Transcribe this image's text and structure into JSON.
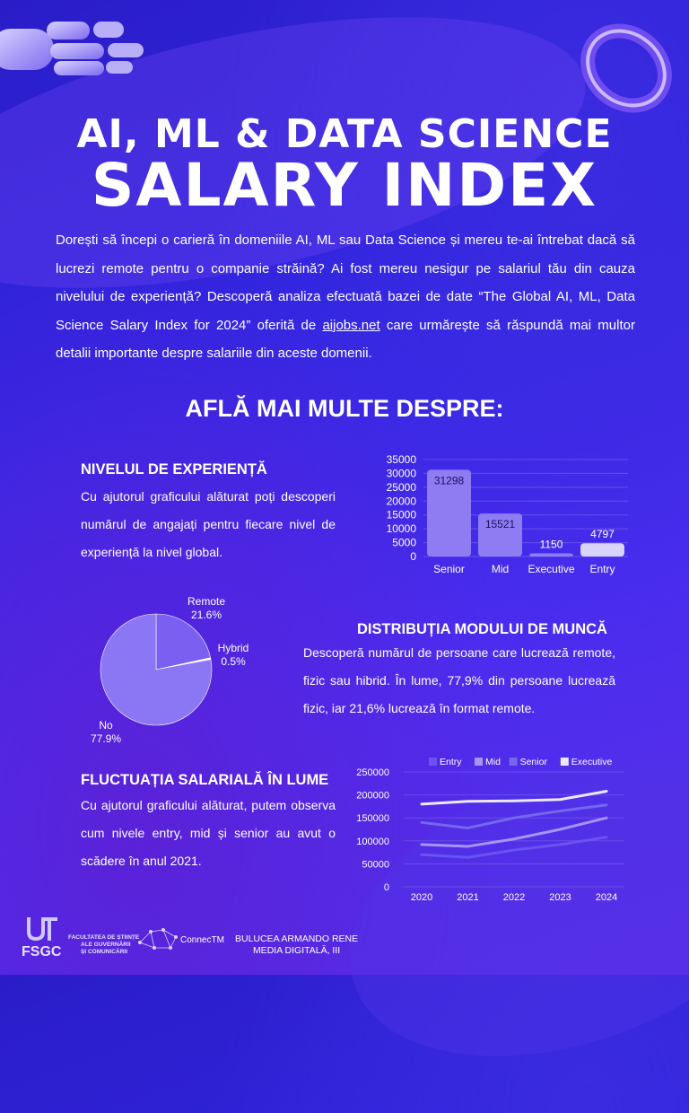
{
  "header": {
    "title_line1": "AI, ML & DATA SCIENCE",
    "title_line2": "SALARY INDEX"
  },
  "intro": {
    "text_before_link": "Dorești să începi o carieră în domeniile AI, ML sau Data Science și mereu te-ai întrebat dacă să lucrezi remote pentru o companie străină? Ai fost mereu nesigur pe salariul tău din cauza nivelului de experiență? Descoperă analiza efectuată bazei de date “The Global AI, ML, Data Science Salary Index for 2024” oferită de ",
    "link_text": "aijobs.net",
    "text_after_link": " care urmărește să răspundă mai multor detalii importante despre salariile din aceste domenii."
  },
  "section_heading": "AFLĂ MAI MULTE DESPRE:",
  "experience": {
    "title": "NIVELUL DE EXPERIENȚĂ",
    "text": "Cu ajutorul graficului alăturat poți descoperi numărul de angajați pentru fiecare nivel de experiență la nivel global."
  },
  "work_mode": {
    "title": "DISTRIBUȚIA MODULUI DE MUNCĂ",
    "text": "Descoperă numărul de persoane care lucrează remote, fizic sau hibrid. În lume, 77,9% din persoane lucrează fizic, iar 21,6% lucrează în format remote."
  },
  "salary": {
    "title": "FLUCTUAȚIA SALARIALĂ ÎN LUME",
    "text": "Cu ajutorul graficului alăturat, putem observa cum nivele entry, mid și senior au avut o scădere în anul 2021."
  },
  "footer": {
    "faculty_line1": "FACULTATEA DE ȘTIINȚE",
    "faculty_line2": "ALE GUVERNĂRII",
    "faculty_line3": "ȘI COMUNICĂRII",
    "logo_text": "FSGC",
    "network_label": "ConnecTM",
    "author_line1": "BULUCEA ARMANDO RENE",
    "author_line2": "MEDIA DIGITALĂ, III"
  },
  "colors": {
    "bar": "#8f7cf2",
    "bar_light": "#d9d3fb",
    "pie_main": "#8b76f4",
    "pie_remote": "#7a5ff0",
    "entry": "#6b53f2",
    "mid": "#a595f5",
    "senior": "#7468ee",
    "executive": "#ece9ff"
  },
  "chart_data": [
    {
      "type": "bar",
      "categories": [
        "Senior",
        "Mid",
        "Executive",
        "Entry"
      ],
      "values": [
        31298,
        15521,
        1150,
        4797
      ],
      "ylim": [
        0,
        35000
      ],
      "yticks": [
        0,
        5000,
        10000,
        15000,
        20000,
        25000,
        30000,
        35000
      ],
      "grid": true
    },
    {
      "type": "pie",
      "labels": [
        "Remote",
        "Hybrid",
        "No"
      ],
      "values": [
        21.6,
        0.5,
        77.9
      ],
      "value_labels": [
        "21.6%",
        "0.5%",
        "77.9%"
      ]
    },
    {
      "type": "line",
      "x": [
        "2020",
        "2021",
        "2022",
        "2023",
        "2024"
      ],
      "series": [
        {
          "name": "Entry",
          "values": [
            70000,
            64000,
            80000,
            92000,
            108000
          ]
        },
        {
          "name": "Mid",
          "values": [
            92000,
            88000,
            104000,
            125000,
            150000
          ]
        },
        {
          "name": "Senior",
          "values": [
            140000,
            128000,
            150000,
            165000,
            178000
          ]
        },
        {
          "name": "Executive",
          "values": [
            180000,
            186000,
            187000,
            190000,
            208000
          ]
        }
      ],
      "ylim": [
        0,
        250000
      ],
      "yticks": [
        0,
        50000,
        100000,
        150000,
        200000,
        250000
      ],
      "legend": "top"
    }
  ]
}
